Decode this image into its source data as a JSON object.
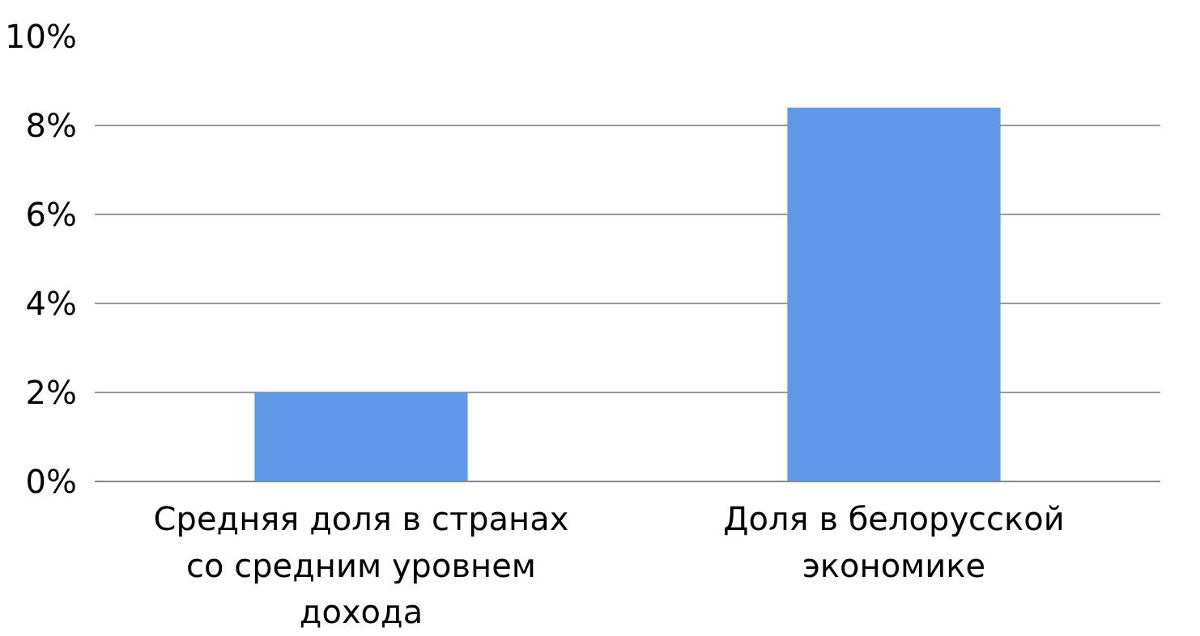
{
  "chart_data": {
    "type": "bar",
    "categories": [
      "Средняя доля в странах со средним уровнем дохода",
      "Доля в белорусской экономике"
    ],
    "values": [
      2.0,
      8.4
    ],
    "color": "#5f98e6",
    "ylim": [
      0,
      10
    ],
    "yticks": [
      {
        "value": 0,
        "label": "0%"
      },
      {
        "value": 2,
        "label": "2%"
      },
      {
        "value": 4,
        "label": "4%"
      },
      {
        "value": 6,
        "label": "6%"
      },
      {
        "value": 8,
        "label": "8%"
      },
      {
        "value": 10,
        "label": "10%"
      }
    ],
    "grid": "y"
  }
}
